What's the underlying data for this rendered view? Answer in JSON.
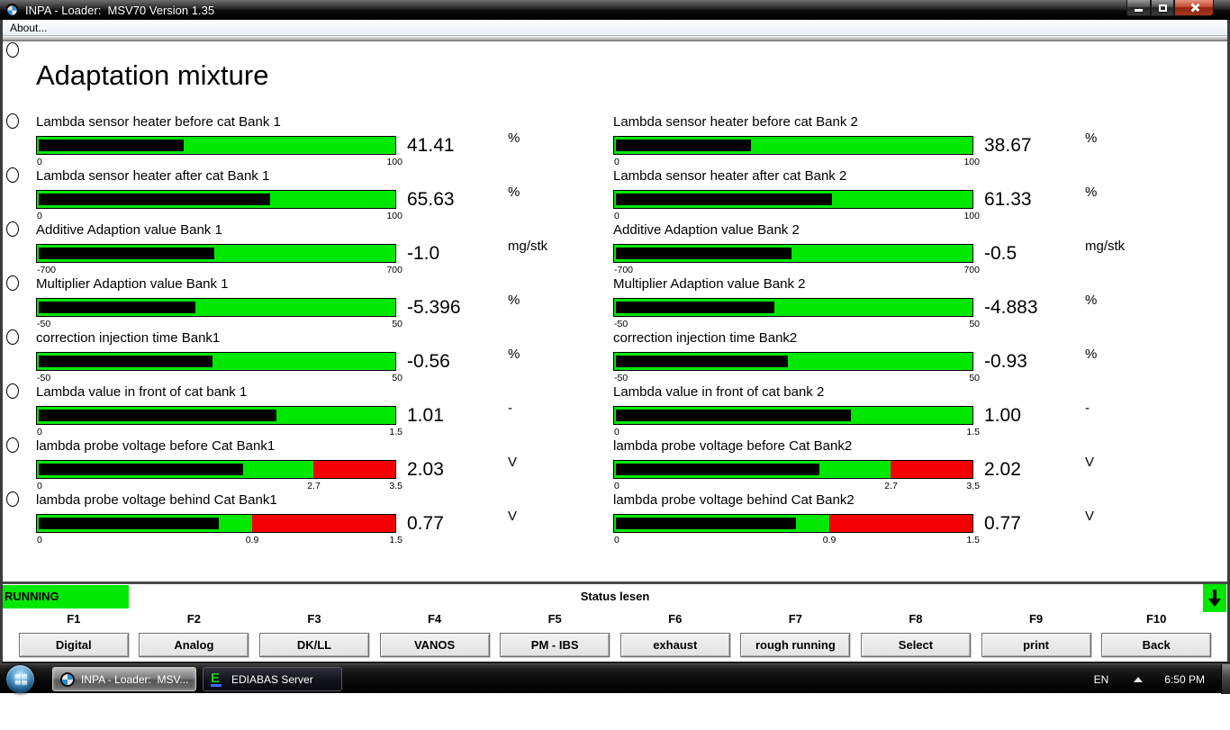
{
  "titlebar": {
    "title": "INPA - Loader:  MSV70 Version 1.35",
    "app_icon": "bmw-roundel",
    "controls": {
      "minimize": "minimize",
      "maximize": "maximize",
      "close": "close"
    }
  },
  "menubar": {
    "about": "About..."
  },
  "heading": "Adaptation mixture",
  "colors": {
    "bar_green": "#00e800",
    "bar_red": "#f40000",
    "status_green": "#00e800"
  },
  "gauges": {
    "columns": [
      [
        {
          "label": "Lambda sensor heater before cat Bank 1",
          "value": 41.41,
          "display": "41.41",
          "unit": "%",
          "scale": {
            "min": 0,
            "max": 100,
            "min_label": "0",
            "max_label": "100"
          }
        },
        {
          "label": "Lambda sensor heater after cat Bank 1",
          "value": 65.63,
          "display": "65.63",
          "unit": "%",
          "scale": {
            "min": 0,
            "max": 100,
            "min_label": "0",
            "max_label": "100"
          }
        },
        {
          "label": "Additive Adaption value Bank 1",
          "value": -1.0,
          "display": "-1.0",
          "unit": "mg/stk",
          "scale": {
            "min": -700,
            "max": 700,
            "min_label": "-700",
            "max_label": "700"
          }
        },
        {
          "label": "Multiplier Adaption value Bank 1",
          "value": -5.396,
          "display": "-5.396",
          "unit": "%",
          "scale": {
            "min": -50,
            "max": 50,
            "min_label": "-50",
            "max_label": "50"
          }
        },
        {
          "label": "correction injection time Bank1",
          "value": -0.56,
          "display": "-0.56",
          "unit": "%",
          "scale": {
            "min": -50,
            "max": 50,
            "min_label": "-50",
            "max_label": "50"
          }
        },
        {
          "label": "Lambda value in front of cat bank 1",
          "value": 1.01,
          "display": "1.01",
          "unit": "-",
          "scale": {
            "min": 0,
            "max": 1.5,
            "min_label": "0",
            "max_label": "1.5"
          }
        },
        {
          "label": "lambda probe voltage before Cat Bank1",
          "value": 2.03,
          "display": "2.03",
          "unit": "V",
          "red_from": 2.7,
          "scale": {
            "min": 0,
            "max": 3.5,
            "min_label": "0",
            "mid_label": "2.7",
            "max_label": "3.5"
          }
        },
        {
          "label": "lambda probe voltage behind Cat Bank1",
          "value": 0.77,
          "display": "0.77",
          "unit": "V",
          "red_from": 0.9,
          "scale": {
            "min": 0,
            "max": 1.5,
            "min_label": "0",
            "mid_label": "0.9",
            "max_label": "1.5"
          }
        }
      ],
      [
        {
          "label": "Lambda sensor heater before cat Bank 2",
          "value": 38.67,
          "display": "38.67",
          "unit": "%",
          "scale": {
            "min": 0,
            "max": 100,
            "min_label": "0",
            "max_label": "100"
          }
        },
        {
          "label": "Lambda sensor heater after cat Bank 2",
          "value": 61.33,
          "display": "61.33",
          "unit": "%",
          "scale": {
            "min": 0,
            "max": 100,
            "min_label": "0",
            "max_label": "100"
          }
        },
        {
          "label": "Additive Adaption value Bank 2",
          "value": -0.5,
          "display": "-0.5",
          "unit": "mg/stk",
          "scale": {
            "min": -700,
            "max": 700,
            "min_label": "-700",
            "max_label": "700"
          }
        },
        {
          "label": "Multiplier Adaption value Bank 2",
          "value": -4.883,
          "display": "-4.883",
          "unit": "%",
          "scale": {
            "min": -50,
            "max": 50,
            "min_label": "-50",
            "max_label": "50"
          }
        },
        {
          "label": "correction injection time Bank2",
          "value": -0.93,
          "display": "-0.93",
          "unit": "%",
          "scale": {
            "min": -50,
            "max": 50,
            "min_label": "-50",
            "max_label": "50"
          }
        },
        {
          "label": "Lambda value in front of cat bank 2",
          "value": 1.0,
          "display": "1.00",
          "unit": "-",
          "scale": {
            "min": 0,
            "max": 1.5,
            "min_label": "0",
            "max_label": "1.5"
          }
        },
        {
          "label": "lambda probe voltage before Cat Bank2",
          "value": 2.02,
          "display": "2.02",
          "unit": "V",
          "red_from": 2.7,
          "scale": {
            "min": 0,
            "max": 3.5,
            "min_label": "0",
            "mid_label": "2.7",
            "max_label": "3.5"
          }
        },
        {
          "label": "lambda probe voltage behind Cat Bank2",
          "value": 0.77,
          "display": "0.77",
          "unit": "V",
          "red_from": 0.9,
          "scale": {
            "min": 0,
            "max": 1.5,
            "min_label": "0",
            "mid_label": "0.9",
            "max_label": "1.5"
          }
        }
      ]
    ]
  },
  "status": {
    "running": "RUNNING",
    "message": "Status lesen",
    "scroll_icon": "down-arrow"
  },
  "fkeys": [
    {
      "key": "F1",
      "label": "Digital"
    },
    {
      "key": "F2",
      "label": "Analog"
    },
    {
      "key": "F3",
      "label": "DK/LL"
    },
    {
      "key": "F4",
      "label": "VANOS"
    },
    {
      "key": "F5",
      "label": "PM - IBS"
    },
    {
      "key": "F6",
      "label": "exhaust"
    },
    {
      "key": "F7",
      "label": "rough running"
    },
    {
      "key": "F8",
      "label": "Select"
    },
    {
      "key": "F9",
      "label": "print"
    },
    {
      "key": "F10",
      "label": "Back"
    }
  ],
  "taskbar": {
    "start_icon": "windows-start-orb",
    "buttons": [
      {
        "icon": "bmw-roundel",
        "label": "INPA - Loader:  MSV...",
        "active": true
      },
      {
        "icon": "ediabas-icon",
        "label": "EDIABAS Server",
        "active": false
      }
    ],
    "tray": {
      "language": "EN",
      "hidden_icons_icon": "up-arrow",
      "clock": "6:50 PM"
    }
  }
}
